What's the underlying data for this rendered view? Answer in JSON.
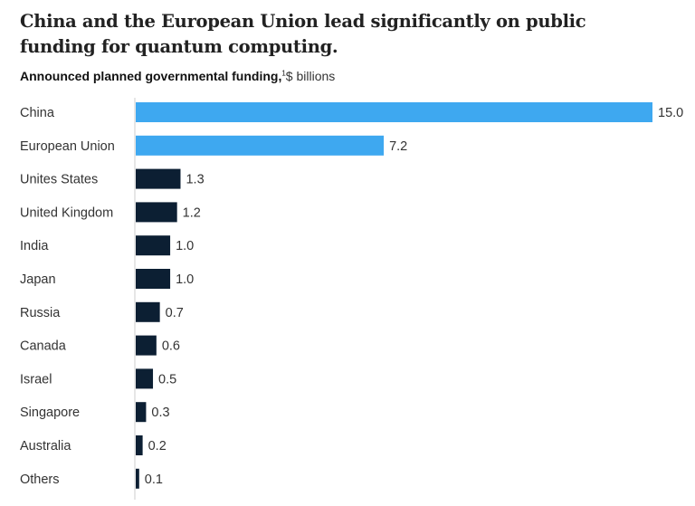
{
  "chart_data": {
    "type": "bar",
    "orientation": "horizontal",
    "title": "China and the European Union lead significantly on public funding for quantum computing.",
    "subtitle_bold": "Announced planned governmental funding,",
    "footnote_marker": "1",
    "subtitle_unit": "$ billions",
    "categories": [
      "China",
      "European Union",
      "Unites States",
      "United Kingdom",
      "India",
      "Japan",
      "Russia",
      "Canada",
      "Israel",
      "Singapore",
      "Australia",
      "Others"
    ],
    "values": [
      15.0,
      7.2,
      1.3,
      1.2,
      1.0,
      1.0,
      0.7,
      0.6,
      0.5,
      0.3,
      0.2,
      0.1
    ],
    "labels": [
      "15.0",
      "7.2",
      "1.3",
      "1.2",
      "1.0",
      "1.0",
      "0.7",
      "0.6",
      "0.5",
      "0.3",
      "0.2",
      "0.1"
    ],
    "highlight": [
      "China",
      "European Union"
    ],
    "colors": {
      "highlight": "#3ea8f0",
      "default": "#0c1f33"
    },
    "xlim": [
      0,
      15
    ]
  }
}
